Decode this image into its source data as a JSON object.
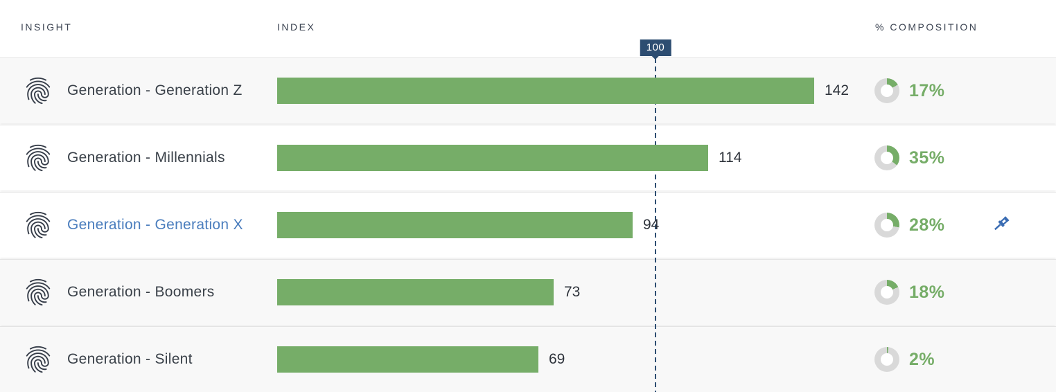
{
  "table": {
    "columns": [
      {
        "label": "INSIGHT"
      },
      {
        "label": "INDEX"
      },
      {
        "label": "% COMPOSITION"
      }
    ],
    "reference_marker": {
      "label": "100",
      "value": 100
    }
  },
  "rows": [
    {
      "label": "Generation - Generation Z",
      "index": 142,
      "composition_value": 17,
      "composition_pct": "17%",
      "highlighted": false,
      "pinned": false
    },
    {
      "label": "Generation - Millennials",
      "index": 114,
      "composition_value": 35,
      "composition_pct": "35%",
      "highlighted": true,
      "pinned": false
    },
    {
      "label": "Generation - Generation X",
      "index": 94,
      "composition_value": 28,
      "composition_pct": "28%",
      "highlighted": true,
      "pinned": true
    },
    {
      "label": "Generation - Boomers",
      "index": 73,
      "composition_value": 18,
      "composition_pct": "18%",
      "highlighted": false,
      "pinned": false
    },
    {
      "label": "Generation - Silent",
      "index": 69,
      "composition_value": 2,
      "composition_pct": "2%",
      "highlighted": false,
      "pinned": false
    }
  ],
  "icons": {
    "row_icon": "fingerprint-icon",
    "pinned_icon": "pin-icon"
  },
  "colors": {
    "bar_green": "#76ad68",
    "donut_gray": "#d9d9d9",
    "reference_navy": "#2d4d71",
    "link_blue": "#4a7dbd",
    "pin_blue": "#3a6cb3"
  },
  "chart_data": {
    "type": "bar",
    "orientation": "horizontal",
    "title": "",
    "categories": [
      "Generation - Generation Z",
      "Generation - Millennials",
      "Generation - Generation X",
      "Generation - Boomers",
      "Generation - Silent"
    ],
    "series": [
      {
        "name": "Index",
        "values": [
          142,
          114,
          94,
          73,
          69
        ]
      },
      {
        "name": "% Composition",
        "values": [
          17,
          35,
          28,
          18,
          2
        ]
      }
    ],
    "reference_line": {
      "axis": "x",
      "value": 100,
      "label": "100"
    },
    "xlim": [
      0,
      206
    ],
    "grid": false,
    "legend": false
  }
}
